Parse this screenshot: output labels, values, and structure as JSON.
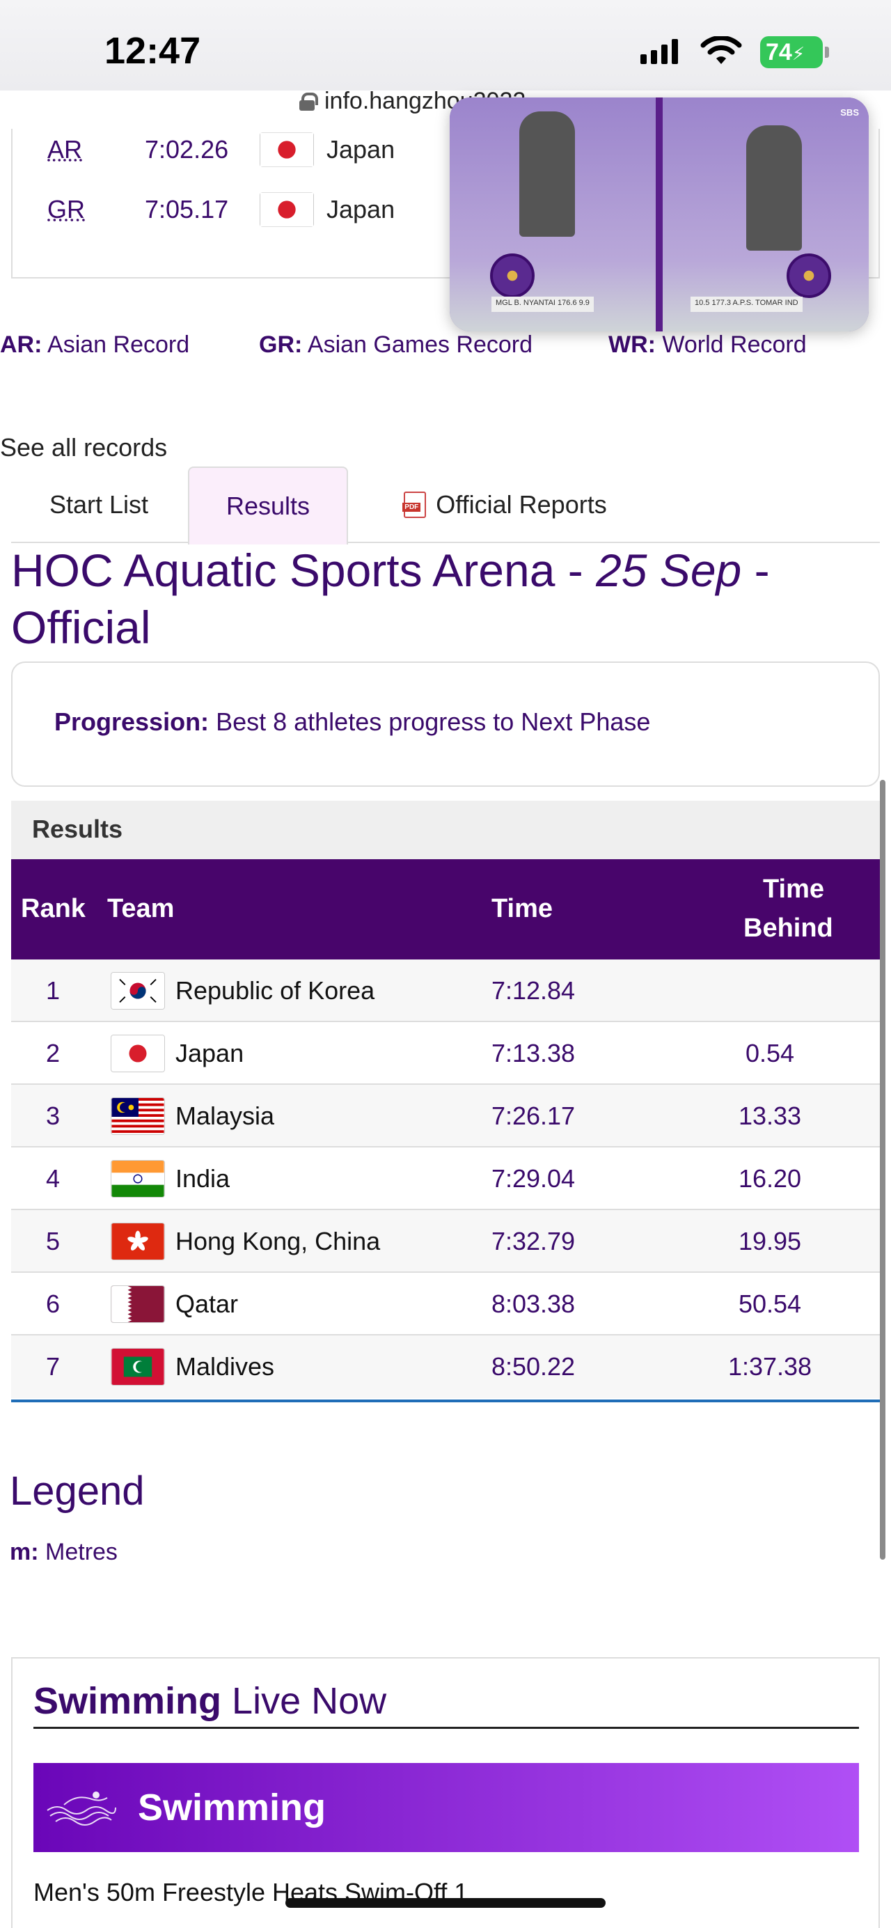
{
  "status_bar": {
    "time": "12:47",
    "battery": "74"
  },
  "browser": {
    "url": "info.hangzhou2022"
  },
  "records": [
    {
      "abbr": "AR",
      "time": "7:02.26",
      "country": "Japan"
    },
    {
      "abbr": "GR",
      "time": "7:05.17",
      "country": "Japan"
    }
  ],
  "record_legend": [
    {
      "abbr": "AR:",
      "text": "Asian Record"
    },
    {
      "abbr": "GR:",
      "text": "Asian Games Record"
    },
    {
      "abbr": "WR:",
      "text": "World Record"
    }
  ],
  "see_all": "See all records",
  "tabs": [
    {
      "label": "Start List",
      "active": false
    },
    {
      "label": "Results",
      "active": true
    },
    {
      "label": "Official Reports",
      "active": false
    }
  ],
  "venue": {
    "name": "HOC Aquatic Sports Arena - ",
    "date": "25 Sep",
    "status_sep": " -",
    "status": "Official"
  },
  "progression": {
    "label": "Progression:",
    "text": "Best 8 athletes progress to Next Phase"
  },
  "results": {
    "heading": "Results",
    "columns": {
      "rank": "Rank",
      "team": "Team",
      "time": "Time",
      "behind_1": "Time",
      "behind_2": "Behind"
    },
    "rows": [
      {
        "rank": "1",
        "flag": "korea-flag-icon",
        "team": "Republic of Korea",
        "time": "7:12.84",
        "behind": ""
      },
      {
        "rank": "2",
        "flag": "japan-flag-icon",
        "team": "Japan",
        "time": "7:13.38",
        "behind": "0.54"
      },
      {
        "rank": "3",
        "flag": "malaysia-flag-icon",
        "team": "Malaysia",
        "time": "7:26.17",
        "behind": "13.33"
      },
      {
        "rank": "4",
        "flag": "india-flag-icon",
        "team": "India",
        "time": "7:29.04",
        "behind": "16.20"
      },
      {
        "rank": "5",
        "flag": "hong-kong-flag-icon",
        "team": "Hong Kong, China",
        "time": "7:32.79",
        "behind": "19.95"
      },
      {
        "rank": "6",
        "flag": "qatar-flag-icon",
        "team": "Qatar",
        "time": "8:03.38",
        "behind": "50.54"
      },
      {
        "rank": "7",
        "flag": "maldives-flag-icon",
        "team": "Maldives",
        "time": "8:50.22",
        "behind": "1:37.38"
      }
    ]
  },
  "legend": {
    "title": "Legend",
    "abbr": "m:",
    "text": "Metres"
  },
  "live": {
    "title_bold": "Swimming",
    "title_rest": " Live Now",
    "banner": "Swimming",
    "event": "Men's 50m Freestyle Heats Swim-Off 1"
  },
  "pip": {
    "left_caption": "MGL  B. NYANTAI   176.6   9.9",
    "right_caption": "10.5   177.3   A.P.S. TOMAR  IND",
    "logo": "SBS"
  },
  "colors": {
    "primary": "#48056b",
    "accent_line": "#1f6db7",
    "battery": "#34c759"
  }
}
